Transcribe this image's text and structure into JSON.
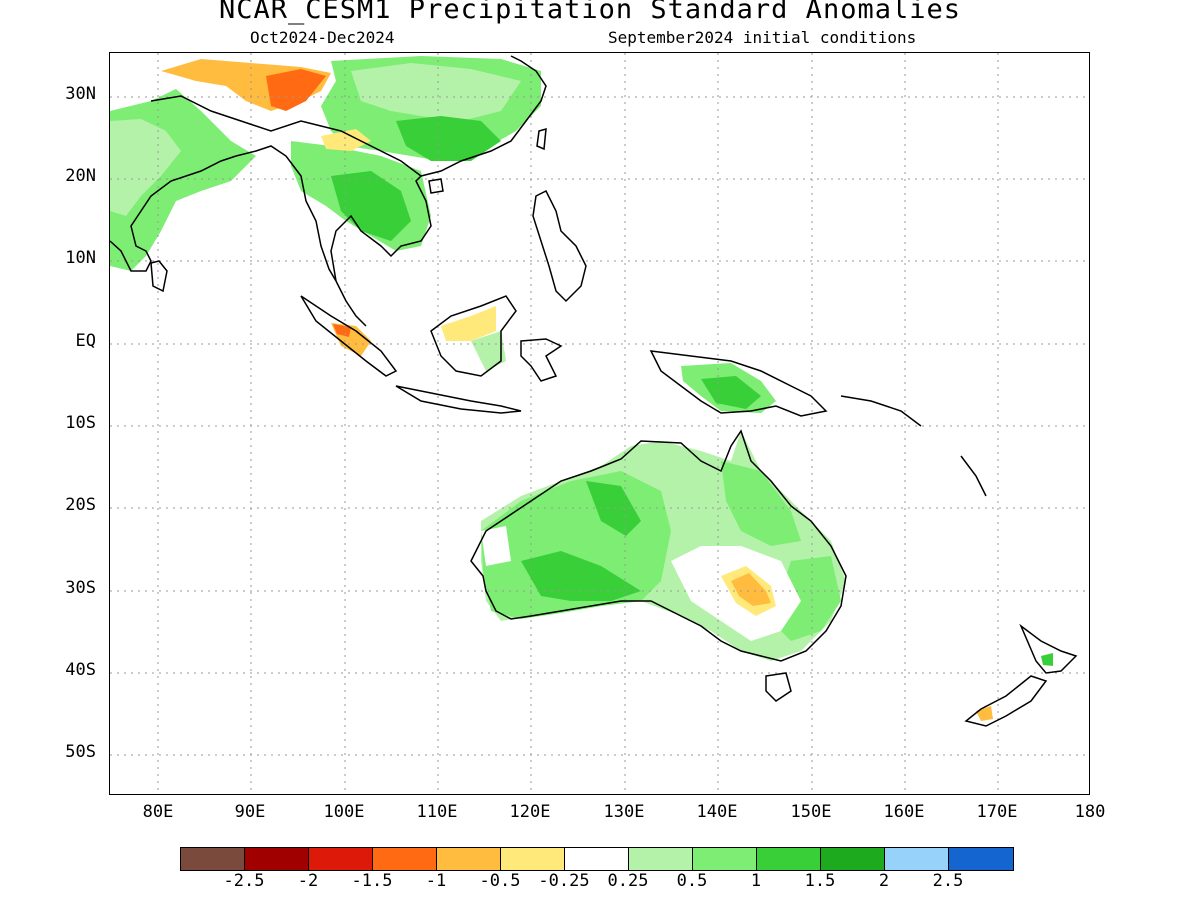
{
  "title": "NCAR_CESM1 Precipitation Standard Anomalies",
  "period": "Oct2024-Dec2024",
  "initial_conditions": "September2024 initial conditions",
  "lat_labels": [
    "30N",
    "20N",
    "10N",
    "EQ",
    "10S",
    "20S",
    "30S",
    "40S",
    "50S"
  ],
  "lon_labels": [
    "80E",
    "90E",
    "100E",
    "110E",
    "120E",
    "130E",
    "140E",
    "150E",
    "160E",
    "170E",
    "180"
  ],
  "colorbar": {
    "colors": [
      "#7a4b3d",
      "#a00000",
      "#dd1a0a",
      "#ff6a12",
      "#ffbc3e",
      "#ffe97a",
      "#ffffff",
      "#b5f2a9",
      "#7ded74",
      "#38cf39",
      "#1eaa1e",
      "#96d2fa",
      "#1565d0"
    ],
    "labels": [
      "-2.5",
      "-2",
      "-1.5",
      "-1",
      "-0.5",
      "-0.25",
      "0.25",
      "0.5",
      "1",
      "1.5",
      "2",
      "2.5"
    ]
  },
  "map": {
    "region": "Indian Ocean, Southeast Asia, Australia, West Pacific",
    "lon_range": [
      75,
      180
    ],
    "lat_range": [
      -55,
      35
    ],
    "grid": true
  }
}
